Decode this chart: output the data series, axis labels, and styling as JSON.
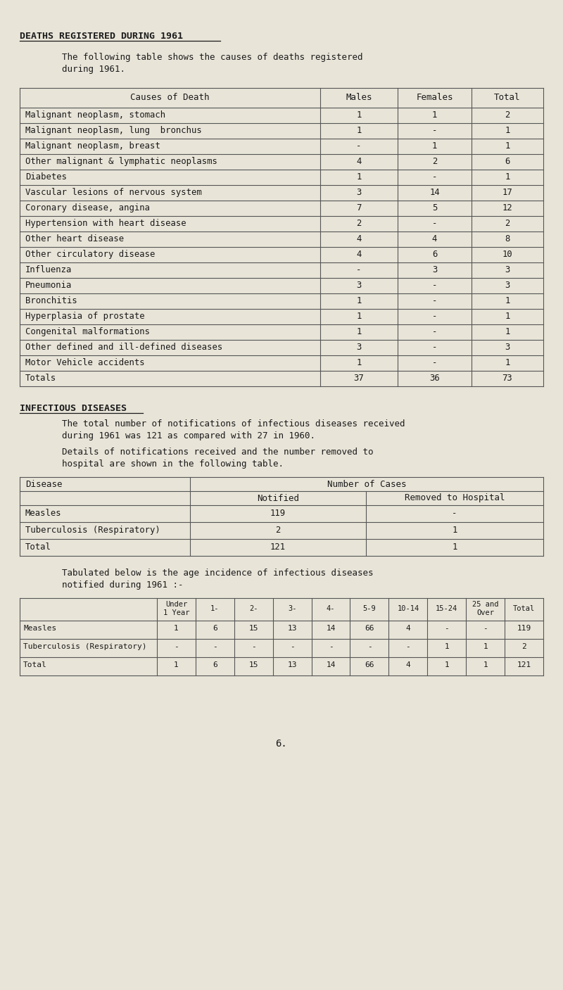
{
  "bg_color": "#e8e4d8",
  "title": "DEATHS REGISTERED DURING 1961",
  "intro_text": "        The following table shows the causes of deaths registered\n        during 1961.",
  "table1_headers": [
    "Causes of Death",
    "Males",
    "Females",
    "Total"
  ],
  "table1_rows": [
    [
      "Malignant neoplasm, stomach",
      "1",
      "1",
      "2"
    ],
    [
      "Malignant neoplasm, lung  bronchus",
      "1",
      "-",
      "1"
    ],
    [
      "Malignant neoplasm, breast",
      "-",
      "1",
      "1"
    ],
    [
      "Other malignant & lymphatic neoplasms",
      "4",
      "2",
      "6"
    ],
    [
      "Diabetes",
      "1",
      "-",
      "1"
    ],
    [
      "Vascular lesions of nervous system",
      "3",
      "14",
      "17"
    ],
    [
      "Coronary disease, angina",
      "7",
      "5",
      "12"
    ],
    [
      "Hypertension with heart disease",
      "2",
      "-",
      "2"
    ],
    [
      "Other heart disease",
      "4",
      "4",
      "8"
    ],
    [
      "Other circulatory disease",
      "4",
      "6",
      "10"
    ],
    [
      "Influenza",
      "-",
      "3",
      "3"
    ],
    [
      "Pneumonia",
      "3",
      "-",
      "3"
    ],
    [
      "Bronchitis",
      "1",
      "-",
      "1"
    ],
    [
      "Hyperplasia of prostate",
      "1",
      "-",
      "1"
    ],
    [
      "Congenital malformations",
      "1",
      "-",
      "1"
    ],
    [
      "Other defined and ill-defined diseases",
      "3",
      "-",
      "3"
    ],
    [
      "Motor Vehicle accidents",
      "1",
      "-",
      "1"
    ],
    [
      "Totals",
      "37",
      "36",
      "73"
    ]
  ],
  "section2_title": "INFECTIOUS DISEASES",
  "section2_text1": "        The total number of notifications of infectious diseases received\n        during 1961 was 121 as compared with 27 in 1960.",
  "section2_text2": "        Details of notifications received and the number removed to\n        hospital are shown in the following table.",
  "table2_rows": [
    [
      "Measles",
      "119",
      "-"
    ],
    [
      "Tuberculosis (Respiratory)",
      "2",
      "1"
    ],
    [
      "Total",
      "121",
      "1"
    ]
  ],
  "section3_text": "        Tabulated below is the age incidence of infectious diseases\n        notified during 1961 :-",
  "table3_col_names": [
    "",
    "Under\n1 Year",
    "1-",
    "2-",
    "3-",
    "4-",
    "5-9",
    "10-14",
    "15-24",
    "25 and\nOver",
    "Total"
  ],
  "table3_rows": [
    [
      "Measles",
      "1",
      "6",
      "15",
      "13",
      "14",
      "66",
      "4",
      "-",
      "-",
      "119"
    ],
    [
      "Tuberculosis (Respiratory)",
      "-",
      "-",
      "-",
      "-",
      "-",
      "-",
      "-",
      "1",
      "1",
      "2"
    ],
    [
      "Total",
      "1",
      "6",
      "15",
      "13",
      "14",
      "66",
      "4",
      "1",
      "1",
      "121"
    ]
  ],
  "footer": "6.",
  "font_color": "#1a1a1a",
  "line_color": "#555555"
}
